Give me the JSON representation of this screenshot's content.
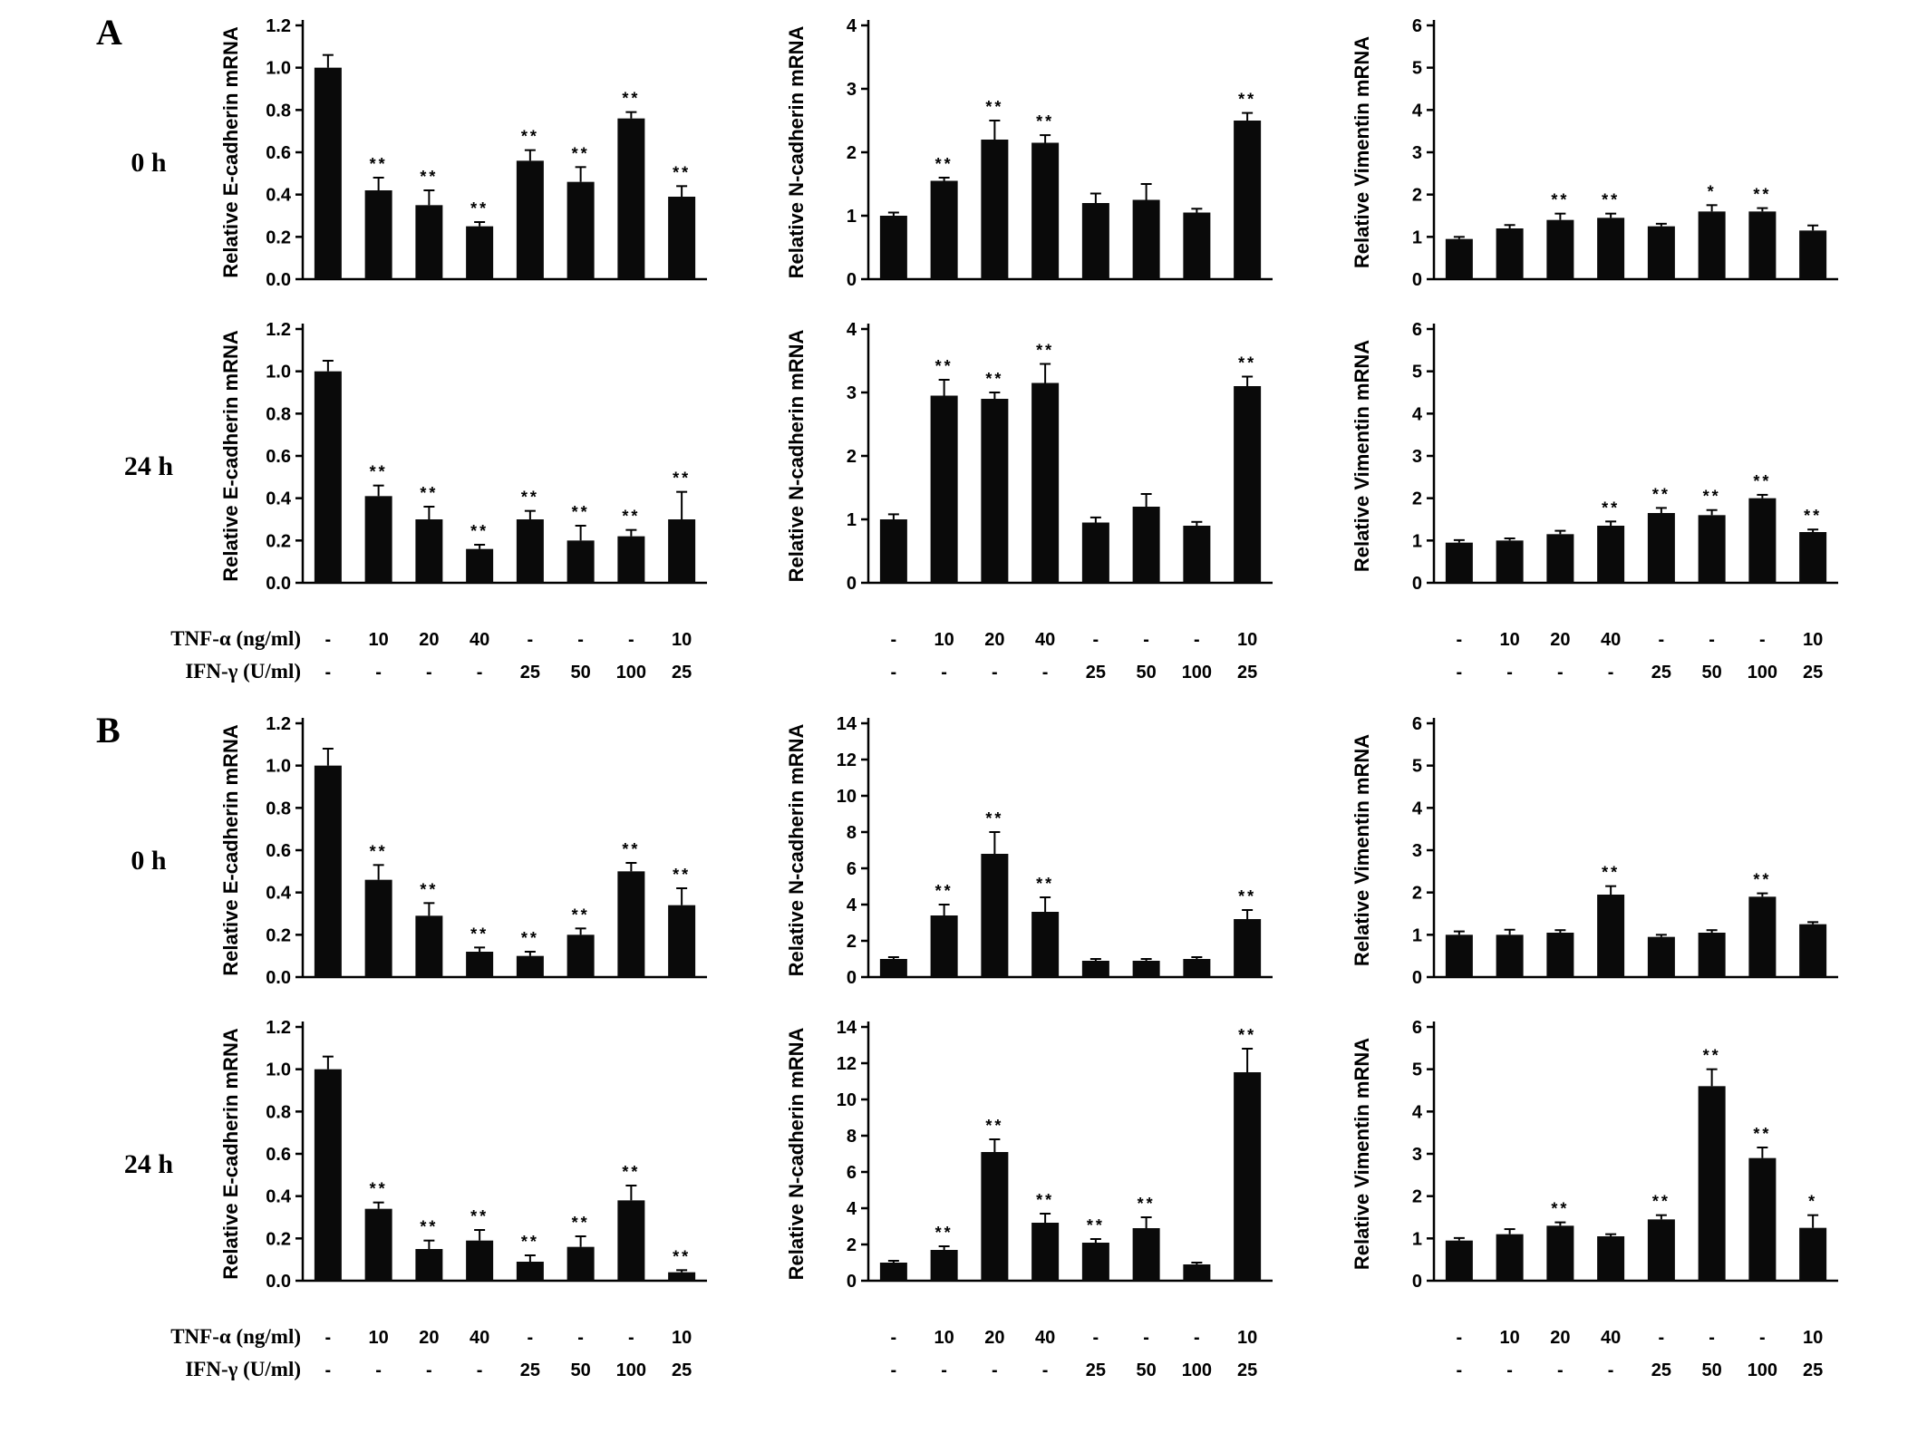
{
  "panels": [
    {
      "label": "A",
      "rows": [
        {
          "time_label": "0 h"
        },
        {
          "time_label": "24 h"
        }
      ],
      "xaxis": {
        "tnf_label": "TNF-α (ng/ml)",
        "ifn_label": "IFN-γ (U/ml)",
        "tnf_values": [
          "-",
          "10",
          "20",
          "40",
          "-",
          "-",
          "-",
          "10"
        ],
        "ifn_values": [
          "-",
          "-",
          "-",
          "-",
          "25",
          "50",
          "100",
          "25"
        ]
      }
    },
    {
      "label": "B",
      "rows": [
        {
          "time_label": "0 h"
        },
        {
          "time_label": "24 h"
        }
      ],
      "xaxis": {
        "tnf_label": "TNF-α (ng/ml)",
        "ifn_label": "IFN-γ (U/ml)",
        "tnf_values": [
          "-",
          "10",
          "20",
          "40",
          "-",
          "-",
          "-",
          "10"
        ],
        "ifn_values": [
          "-",
          "-",
          "-",
          "-",
          "25",
          "50",
          "100",
          "25"
        ]
      }
    }
  ],
  "chart_data": [
    {
      "type": "bar",
      "panel": "A",
      "time": "0 h",
      "ylabel": "Relative E-cadherin mRNA",
      "ylim": [
        0,
        1.2
      ],
      "yticks": [
        0,
        0.2,
        0.4,
        0.6,
        0.8,
        1.0,
        1.2
      ],
      "ytick_labels": [
        "0.0",
        "0.2",
        "0.4",
        "0.6",
        "0.8",
        "1.0",
        "1.2"
      ],
      "values": [
        1.0,
        0.42,
        0.35,
        0.25,
        0.56,
        0.46,
        0.76,
        0.39
      ],
      "errors": [
        0.06,
        0.06,
        0.07,
        0.02,
        0.05,
        0.07,
        0.03,
        0.05
      ],
      "sig": [
        "",
        "**",
        "**",
        "**",
        "**",
        "**",
        "**",
        "**"
      ]
    },
    {
      "type": "bar",
      "panel": "A",
      "time": "0 h",
      "ylabel": "Relative N-cadherin mRNA",
      "ylim": [
        0,
        4
      ],
      "yticks": [
        0,
        1,
        2,
        3,
        4
      ],
      "ytick_labels": [
        "0",
        "1",
        "2",
        "3",
        "4"
      ],
      "values": [
        1.0,
        1.55,
        2.2,
        2.15,
        1.2,
        1.25,
        1.05,
        2.5
      ],
      "errors": [
        0.05,
        0.05,
        0.3,
        0.12,
        0.15,
        0.25,
        0.06,
        0.12
      ],
      "sig": [
        "",
        "**",
        "**",
        "**",
        "",
        "",
        "",
        "**"
      ]
    },
    {
      "type": "bar",
      "panel": "A",
      "time": "0 h",
      "ylabel": "Relative Vimentin mRNA",
      "ylim": [
        0,
        6
      ],
      "yticks": [
        0,
        1,
        2,
        3,
        4,
        5,
        6
      ],
      "ytick_labels": [
        "0",
        "1",
        "2",
        "3",
        "4",
        "5",
        "6"
      ],
      "values": [
        0.95,
        1.2,
        1.4,
        1.45,
        1.25,
        1.6,
        1.6,
        1.15
      ],
      "errors": [
        0.05,
        0.08,
        0.15,
        0.1,
        0.06,
        0.15,
        0.08,
        0.12
      ],
      "sig": [
        "",
        "",
        "**",
        "**",
        "",
        "*",
        "**",
        ""
      ]
    },
    {
      "type": "bar",
      "panel": "A",
      "time": "24 h",
      "ylabel": "Relative E-cadherin mRNA",
      "ylim": [
        0,
        1.2
      ],
      "yticks": [
        0,
        0.2,
        0.4,
        0.6,
        0.8,
        1.0,
        1.2
      ],
      "ytick_labels": [
        "0.0",
        "0.2",
        "0.4",
        "0.6",
        "0.8",
        "1.0",
        "1.2"
      ],
      "values": [
        1.0,
        0.41,
        0.3,
        0.16,
        0.3,
        0.2,
        0.22,
        0.3
      ],
      "errors": [
        0.05,
        0.05,
        0.06,
        0.02,
        0.04,
        0.07,
        0.03,
        0.13
      ],
      "sig": [
        "",
        "**",
        "**",
        "**",
        "**",
        "**",
        "**",
        "**"
      ]
    },
    {
      "type": "bar",
      "panel": "A",
      "time": "24 h",
      "ylabel": "Relative N-cadherin mRNA",
      "ylim": [
        0,
        4
      ],
      "yticks": [
        0,
        1,
        2,
        3,
        4
      ],
      "ytick_labels": [
        "0",
        "1",
        "2",
        "3",
        "4"
      ],
      "values": [
        1.0,
        2.95,
        2.9,
        3.15,
        0.95,
        1.2,
        0.9,
        3.1
      ],
      "errors": [
        0.08,
        0.25,
        0.1,
        0.3,
        0.08,
        0.2,
        0.06,
        0.15
      ],
      "sig": [
        "",
        "**",
        "**",
        "**",
        "",
        "",
        "",
        "**"
      ]
    },
    {
      "type": "bar",
      "panel": "A",
      "time": "24 h",
      "ylabel": "Relative Vimentin mRNA",
      "ylim": [
        0,
        6
      ],
      "yticks": [
        0,
        1,
        2,
        3,
        4,
        5,
        6
      ],
      "ytick_labels": [
        "0",
        "1",
        "2",
        "3",
        "4",
        "5",
        "6"
      ],
      "values": [
        0.95,
        1.0,
        1.15,
        1.35,
        1.65,
        1.6,
        2.0,
        1.2
      ],
      "errors": [
        0.06,
        0.05,
        0.08,
        0.1,
        0.12,
        0.12,
        0.08,
        0.06
      ],
      "sig": [
        "",
        "",
        "",
        "**",
        "**",
        "**",
        "**",
        "**"
      ]
    },
    {
      "type": "bar",
      "panel": "B",
      "time": "0 h",
      "ylabel": "Relative E-cadherin mRNA",
      "ylim": [
        0,
        1.2
      ],
      "yticks": [
        0,
        0.2,
        0.4,
        0.6,
        0.8,
        1.0,
        1.2
      ],
      "ytick_labels": [
        "0.0",
        "0.2",
        "0.4",
        "0.6",
        "0.8",
        "1.0",
        "1.2"
      ],
      "values": [
        1.0,
        0.46,
        0.29,
        0.12,
        0.1,
        0.2,
        0.5,
        0.34
      ],
      "errors": [
        0.08,
        0.07,
        0.06,
        0.02,
        0.02,
        0.03,
        0.04,
        0.08
      ],
      "sig": [
        "",
        "**",
        "**",
        "**",
        "**",
        "**",
        "**",
        "**"
      ]
    },
    {
      "type": "bar",
      "panel": "B",
      "time": "0 h",
      "ylabel": "Relative N-cadherin mRNA",
      "ylim": [
        0,
        14
      ],
      "yticks": [
        0,
        2,
        4,
        6,
        8,
        10,
        12,
        14
      ],
      "ytick_labels": [
        "0",
        "2",
        "4",
        "6",
        "8",
        "10",
        "12",
        "14"
      ],
      "values": [
        1.0,
        3.4,
        6.8,
        3.6,
        0.9,
        0.9,
        1.0,
        3.2
      ],
      "errors": [
        0.1,
        0.6,
        1.2,
        0.8,
        0.1,
        0.1,
        0.1,
        0.5
      ],
      "sig": [
        "",
        "**",
        "**",
        "**",
        "",
        "",
        "",
        "**"
      ]
    },
    {
      "type": "bar",
      "panel": "B",
      "time": "0 h",
      "ylabel": "Relative Vimentin mRNA",
      "ylim": [
        0,
        6
      ],
      "yticks": [
        0,
        1,
        2,
        3,
        4,
        5,
        6
      ],
      "ytick_labels": [
        "0",
        "1",
        "2",
        "3",
        "4",
        "5",
        "6"
      ],
      "values": [
        1.0,
        1.0,
        1.05,
        1.95,
        0.95,
        1.05,
        1.9,
        1.25
      ],
      "errors": [
        0.08,
        0.12,
        0.06,
        0.2,
        0.05,
        0.06,
        0.08,
        0.05
      ],
      "sig": [
        "",
        "",
        "",
        "**",
        "",
        "",
        "**",
        ""
      ]
    },
    {
      "type": "bar",
      "panel": "B",
      "time": "24 h",
      "ylabel": "Relative E-cadherin mRNA",
      "ylim": [
        0,
        1.2
      ],
      "yticks": [
        0,
        0.2,
        0.4,
        0.6,
        0.8,
        1.0,
        1.2
      ],
      "ytick_labels": [
        "0.0",
        "0.2",
        "0.4",
        "0.6",
        "0.8",
        "1.0",
        "1.2"
      ],
      "values": [
        1.0,
        0.34,
        0.15,
        0.19,
        0.09,
        0.16,
        0.38,
        0.04
      ],
      "errors": [
        0.06,
        0.03,
        0.04,
        0.05,
        0.03,
        0.05,
        0.07,
        0.01
      ],
      "sig": [
        "",
        "**",
        "**",
        "**",
        "**",
        "**",
        "**",
        "**"
      ]
    },
    {
      "type": "bar",
      "panel": "B",
      "time": "24 h",
      "ylabel": "Relative N-cadherin mRNA",
      "ylim": [
        0,
        14
      ],
      "yticks": [
        0,
        2,
        4,
        6,
        8,
        10,
        12,
        14
      ],
      "ytick_labels": [
        "0",
        "2",
        "4",
        "6",
        "8",
        "10",
        "12",
        "14"
      ],
      "values": [
        1.0,
        1.7,
        7.1,
        3.2,
        2.1,
        2.9,
        0.9,
        11.5
      ],
      "errors": [
        0.1,
        0.2,
        0.7,
        0.5,
        0.2,
        0.6,
        0.1,
        1.3
      ],
      "sig": [
        "",
        "**",
        "**",
        "**",
        "**",
        "**",
        "",
        "**"
      ]
    },
    {
      "type": "bar",
      "panel": "B",
      "time": "24 h",
      "ylabel": "Relative Vimentin mRNA",
      "ylim": [
        0,
        6
      ],
      "yticks": [
        0,
        1,
        2,
        3,
        4,
        5,
        6
      ],
      "ytick_labels": [
        "0",
        "1",
        "2",
        "3",
        "4",
        "5",
        "6"
      ],
      "values": [
        0.95,
        1.1,
        1.3,
        1.05,
        1.45,
        4.6,
        2.9,
        1.25
      ],
      "errors": [
        0.06,
        0.12,
        0.08,
        0.05,
        0.1,
        0.4,
        0.25,
        0.3
      ],
      "sig": [
        "",
        "",
        "**",
        "",
        "**",
        "**",
        "**",
        "*"
      ]
    }
  ],
  "style": {
    "bar_color": "#0a0a0a",
    "axis_color": "#000000",
    "background": "#ffffff"
  }
}
